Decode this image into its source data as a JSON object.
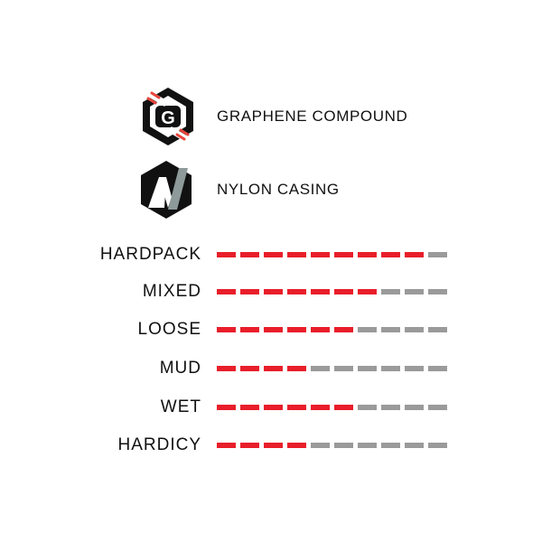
{
  "features": [
    {
      "label": "GRAPHENE COMPOUND",
      "icon": "graphene-g-hexagon-icon"
    },
    {
      "label": "NYLON CASING",
      "icon": "nylon-n-hexagon-icon"
    }
  ],
  "colors": {
    "active": "#e81e2a",
    "inactive": "#9a9a9a",
    "icon_dark": "#111111"
  },
  "ratings": {
    "scale_max": 10,
    "items": [
      {
        "label": "HARDPACK",
        "value": 9
      },
      {
        "label": "MIXED",
        "value": 7
      },
      {
        "label": "LOOSE",
        "value": 6
      },
      {
        "label": "MUD",
        "value": 4
      },
      {
        "label": "WET",
        "value": 6
      },
      {
        "label": "HARDICY",
        "value": 4
      }
    ]
  }
}
